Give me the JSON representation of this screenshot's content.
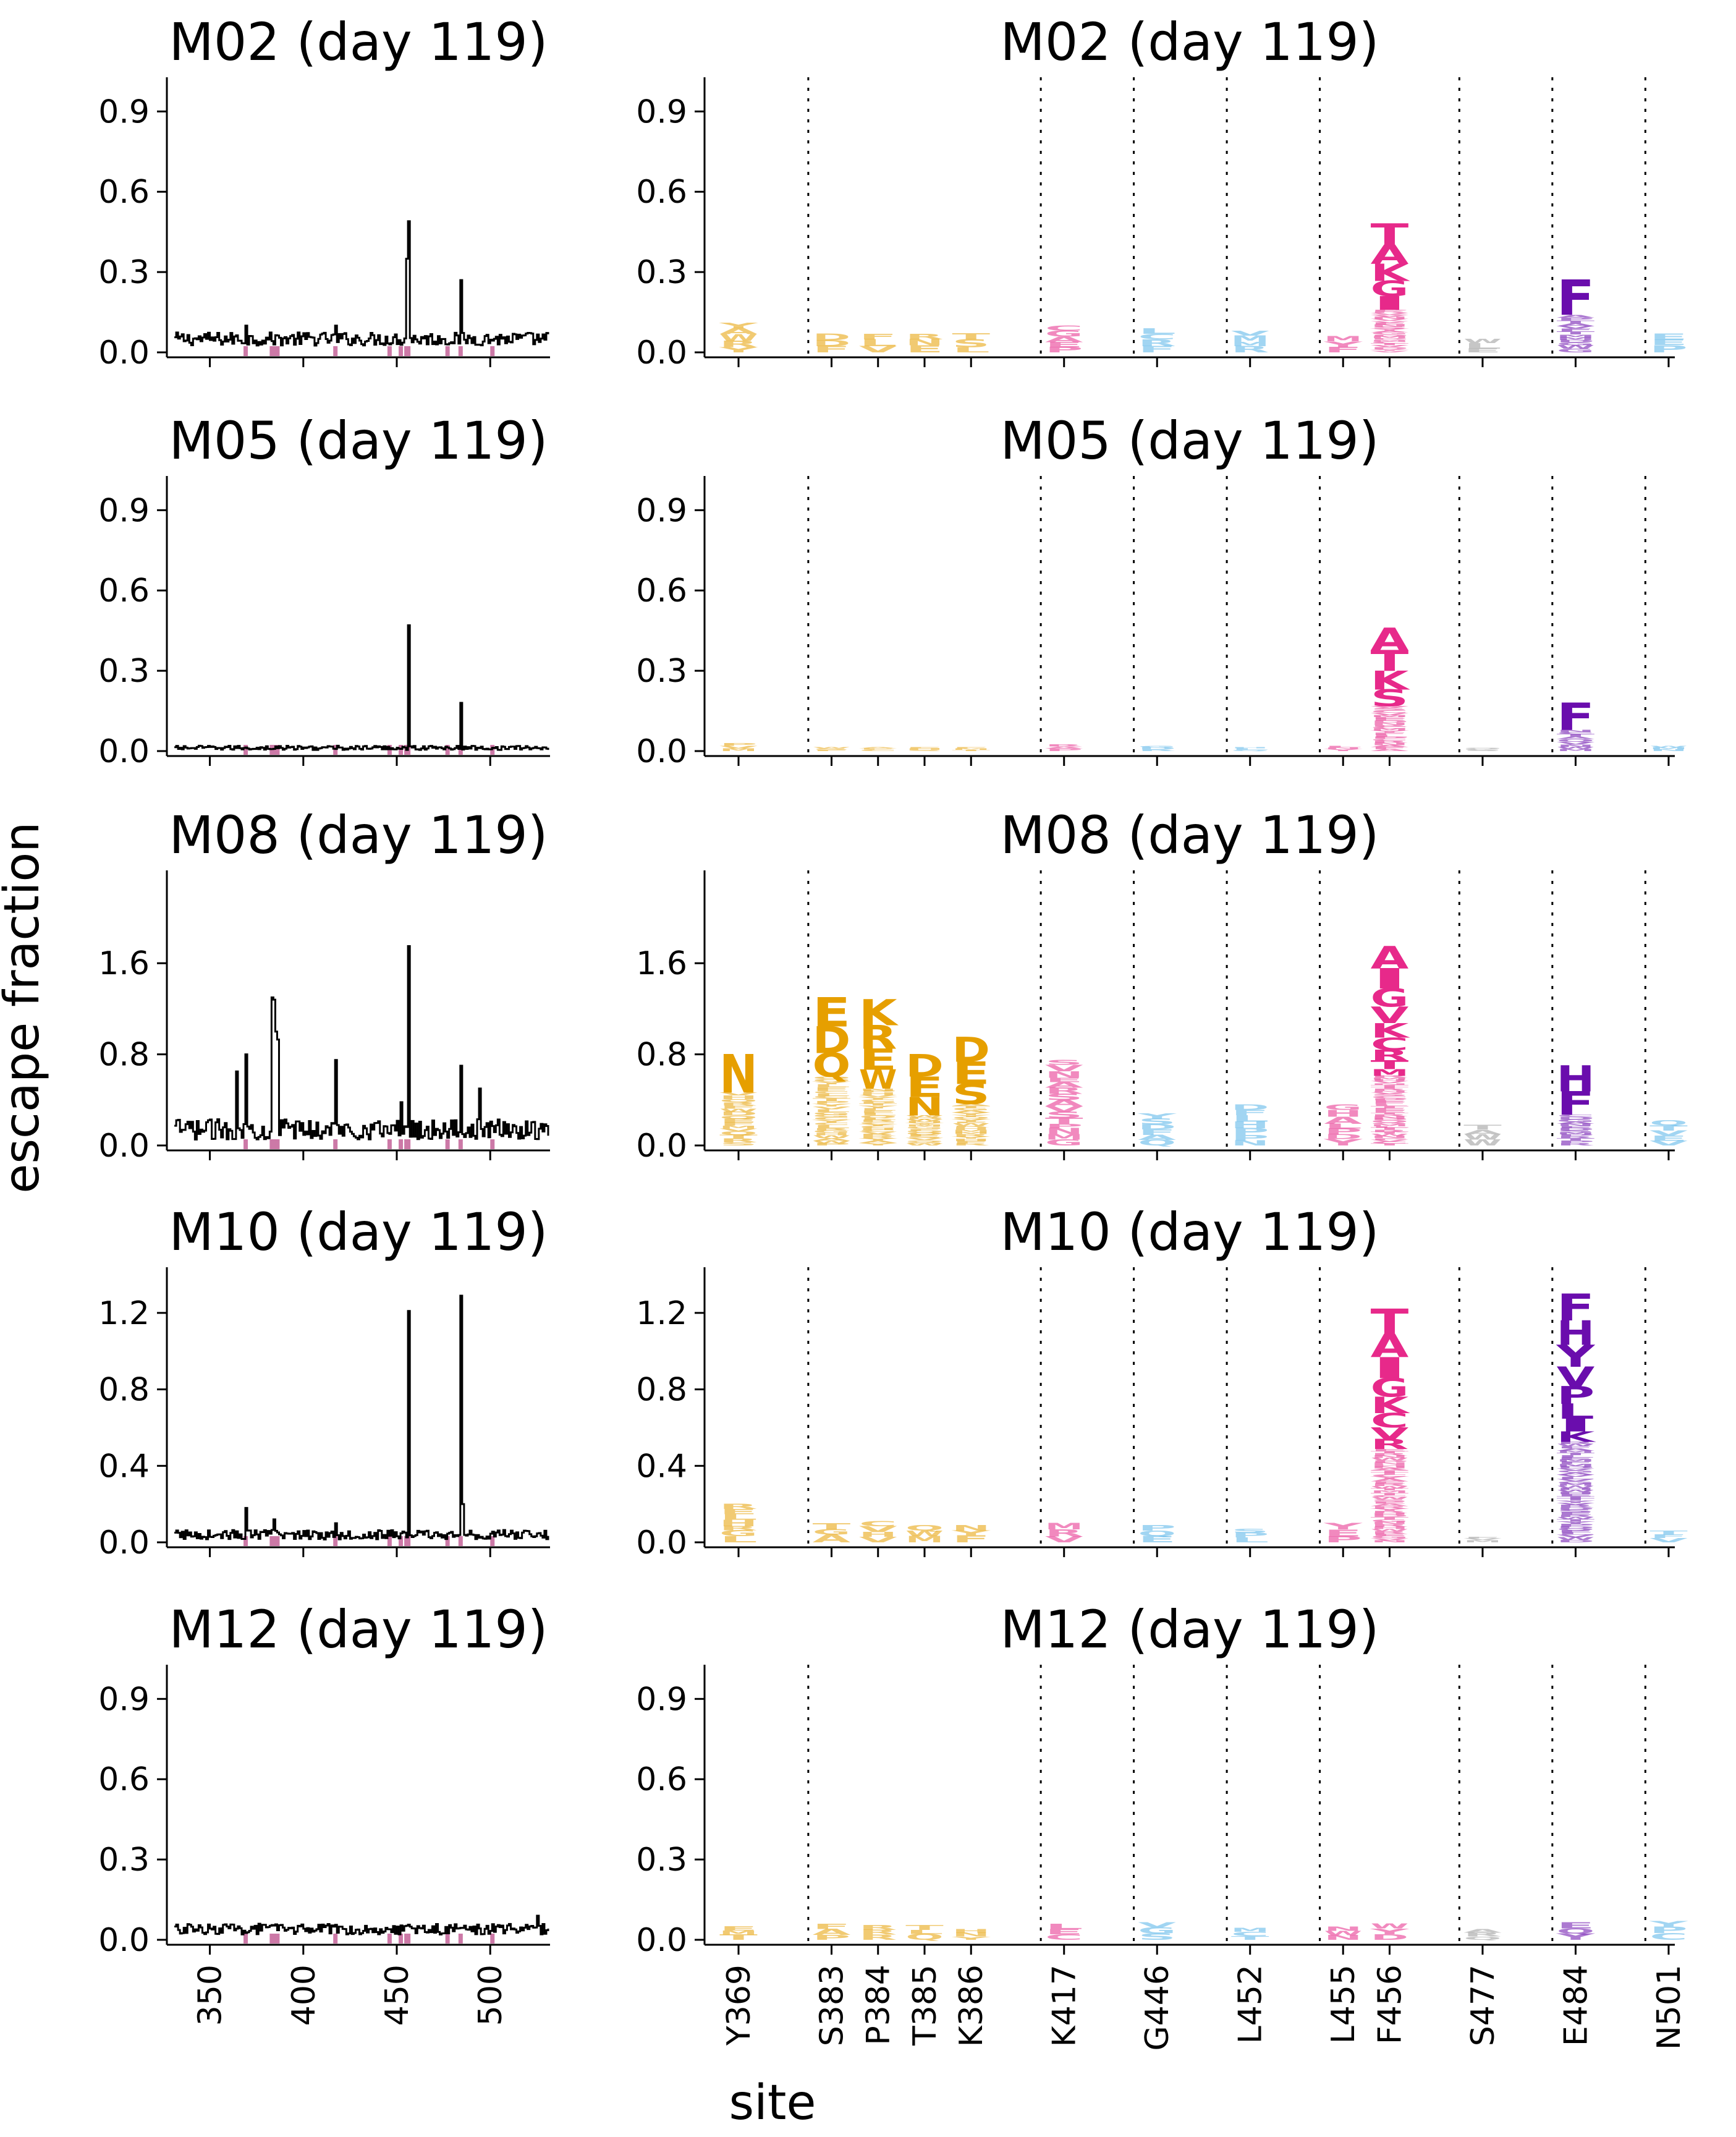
{
  "figure": {
    "ylabel": "escape fraction",
    "xlabel": "site"
  },
  "colors": {
    "orange": "#e69f00",
    "pink": "#e7298a",
    "blue": "#56b4e9",
    "grey": "#999999",
    "purple": "#6a0dad",
    "line": "#000000",
    "marker": "#cc79a7"
  },
  "chart_data": {
    "type": "line+logo",
    "site_line_xticks": [
      "350",
      "400",
      "450",
      "500"
    ],
    "site_line_xlim": [
      327,
      532
    ],
    "marked_sites": [
      369,
      383,
      384,
      385,
      386,
      417,
      446,
      452,
      455,
      456,
      477,
      484,
      501
    ],
    "logo_sites": [
      {
        "label": "Y369",
        "site": 369,
        "color": "orange"
      },
      {
        "label": "S383",
        "site": 383,
        "color": "orange"
      },
      {
        "label": "P384",
        "site": 384,
        "color": "orange"
      },
      {
        "label": "T385",
        "site": 385,
        "color": "orange"
      },
      {
        "label": "K386",
        "site": 386,
        "color": "orange"
      },
      {
        "label": "K417",
        "site": 417,
        "color": "pink"
      },
      {
        "label": "G446",
        "site": 446,
        "color": "blue"
      },
      {
        "label": "L452",
        "site": 452,
        "color": "blue"
      },
      {
        "label": "L455",
        "site": 455,
        "color": "pink"
      },
      {
        "label": "F456",
        "site": 456,
        "color": "pink"
      },
      {
        "label": "S477",
        "site": 477,
        "color": "grey"
      },
      {
        "label": "E484",
        "site": 484,
        "color": "purple"
      },
      {
        "label": "N501",
        "site": 501,
        "color": "blue"
      }
    ],
    "logo_slots": [
      0,
      2,
      3,
      4,
      5,
      7,
      9,
      11,
      13,
      14,
      16,
      18,
      20
    ],
    "logo_separators_after_slot": [
      1,
      6,
      8,
      10,
      12,
      15,
      17,
      19
    ],
    "panels": [
      {
        "title": "M02 (day 119)",
        "ylim": [
          0,
          1.0
        ],
        "yticks": [
          "0.0",
          "0.3",
          "0.6",
          "0.9"
        ],
        "tick_values": [
          0.0,
          0.3,
          0.6,
          0.9
        ],
        "baseline": 0.05,
        "noise": 0.025,
        "peaks": [
          [
            369,
            0.1
          ],
          [
            455,
            0.35
          ],
          [
            456,
            0.49
          ],
          [
            484,
            0.27
          ],
          [
            417,
            0.1
          ]
        ],
        "logo_totals": [
          0.11,
          0.07,
          0.07,
          0.07,
          0.07,
          0.1,
          0.09,
          0.08,
          0.06,
          0.48,
          0.05,
          0.27,
          0.07
        ],
        "logo_letters": {
          "9": [
            "T",
            "A",
            "K",
            "G",
            "I"
          ],
          "11": [
            "F"
          ]
        }
      },
      {
        "title": "M05 (day 119)",
        "ylim": [
          0,
          1.0
        ],
        "yticks": [
          "0.0",
          "0.3",
          "0.6",
          "0.9"
        ],
        "tick_values": [
          0.0,
          0.3,
          0.6,
          0.9
        ],
        "baseline": 0.012,
        "noise": 0.008,
        "peaks": [
          [
            456,
            0.47
          ],
          [
            484,
            0.18
          ]
        ],
        "logo_totals": [
          0.03,
          0.015,
          0.015,
          0.015,
          0.015,
          0.025,
          0.02,
          0.015,
          0.02,
          0.46,
          0.012,
          0.18,
          0.02
        ],
        "logo_letters": {
          "9": [
            "A",
            "T",
            "K",
            "S"
          ],
          "11": [
            "F"
          ]
        }
      },
      {
        "title": "M08 (day 119)",
        "ylim": [
          0,
          2.35
        ],
        "yticks": [
          "0.0",
          "0.8",
          "1.6"
        ],
        "tick_values": [
          0.0,
          0.8,
          1.6
        ],
        "baseline": 0.14,
        "noise": 0.09,
        "peaks": [
          [
            364,
            0.65
          ],
          [
            369,
            0.8
          ],
          [
            383,
            1.3
          ],
          [
            384,
            1.28
          ],
          [
            385,
            1.0
          ],
          [
            386,
            0.93
          ],
          [
            417,
            0.75
          ],
          [
            452,
            0.38
          ],
          [
            456,
            1.75
          ],
          [
            484,
            0.7
          ],
          [
            494,
            0.5
          ]
        ],
        "logo_totals": [
          0.8,
          1.3,
          1.28,
          0.8,
          0.95,
          0.75,
          0.28,
          0.36,
          0.36,
          1.75,
          0.18,
          0.7,
          0.22
        ],
        "logo_letters": {
          "0": [
            "N"
          ],
          "1": [
            "E",
            "D",
            "Q"
          ],
          "2": [
            "K",
            "R",
            "E",
            "W"
          ],
          "3": [
            "D",
            "E",
            "N"
          ],
          "4": [
            "D",
            "E",
            "S"
          ],
          "9": [
            "A",
            "I",
            "G",
            "V",
            "K",
            "C",
            "R",
            "T",
            "M"
          ],
          "11": [
            "H",
            "F"
          ]
        }
      },
      {
        "title": "M10 (day 119)",
        "ylim": [
          0,
          1.4
        ],
        "yticks": [
          "0.0",
          "0.4",
          "0.8",
          "1.2"
        ],
        "tick_values": [
          0.0,
          0.4,
          0.8,
          1.2
        ],
        "baseline": 0.04,
        "noise": 0.025,
        "peaks": [
          [
            369,
            0.18
          ],
          [
            384,
            0.12
          ],
          [
            456,
            1.21
          ],
          [
            484,
            1.29
          ],
          [
            485,
            0.2
          ],
          [
            417,
            0.1
          ]
        ],
        "logo_totals": [
          0.2,
          0.1,
          0.11,
          0.09,
          0.09,
          0.1,
          0.09,
          0.07,
          0.1,
          1.22,
          0.03,
          1.3,
          0.06
        ],
        "logo_letters": {
          "9": [
            "T",
            "A",
            "I",
            "G",
            "K",
            "C",
            "V",
            "R"
          ],
          "11": [
            "F",
            "H",
            "Y",
            "V",
            "P",
            "L",
            "I",
            "K"
          ]
        }
      },
      {
        "title": "M12 (day 119)",
        "ylim": [
          0,
          1.0
        ],
        "yticks": [
          "0.0",
          "0.3",
          "0.6",
          "0.9"
        ],
        "tick_values": [
          0.0,
          0.3,
          0.6,
          0.9
        ],
        "baseline": 0.04,
        "noise": 0.02,
        "peaks": [
          [
            525,
            0.09
          ]
        ],
        "logo_totals": [
          0.05,
          0.06,
          0.055,
          0.055,
          0.04,
          0.06,
          0.065,
          0.045,
          0.05,
          0.06,
          0.04,
          0.065,
          0.07
        ],
        "logo_letters": {}
      }
    ]
  }
}
